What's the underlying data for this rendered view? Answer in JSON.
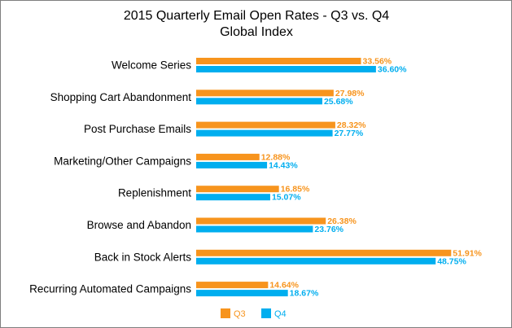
{
  "chart_data": {
    "type": "bar",
    "orientation": "horizontal",
    "title": "2015 Quarterly Email Open Rates - Q3 vs. Q4",
    "subtitle": "Global Index",
    "categories": [
      "Welcome Series",
      "Shopping Cart Abandonment",
      "Post Purchase Emails",
      "Marketing/Other Campaigns",
      "Replenishment",
      "Browse and Abandon",
      "Back in Stock Alerts",
      "Recurring Automated Campaigns"
    ],
    "series": [
      {
        "name": "Q3",
        "color": "#f7941d",
        "values": [
          33.56,
          27.98,
          28.32,
          12.88,
          16.85,
          26.38,
          51.91,
          14.64
        ],
        "labels": [
          "33.56%",
          "27.98%",
          "28.32%",
          "12.88%",
          "16.85%",
          "26.38%",
          "51.91%",
          "14.64%"
        ]
      },
      {
        "name": "Q4",
        "color": "#00aeef",
        "values": [
          36.6,
          25.68,
          27.77,
          14.43,
          15.07,
          23.76,
          48.75,
          18.67
        ],
        "labels": [
          "36.60%",
          "25.68%",
          "27.77%",
          "14.43%",
          "15.07%",
          "23.76%",
          "48.75%",
          "18.67%"
        ]
      }
    ],
    "xlabel": "",
    "ylabel": "",
    "xlim": [
      0,
      55
    ],
    "grid": false,
    "legend": "bottom"
  }
}
